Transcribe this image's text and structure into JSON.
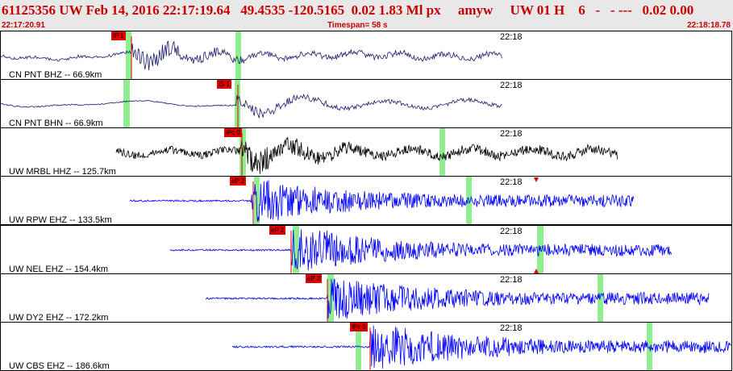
{
  "header": {
    "title": "61125356 UW Feb 14, 2016 22:17:19.64   49.4535 -120.5165  0.02 1.83 Ml px     amyw     UW 01 H    6   -   - ---   0.02 0.00",
    "start_time": "22:17:20.91",
    "timespan": "Timespan=  58 s",
    "end_time": "22:18:18.78"
  },
  "colors": {
    "title": "#c80000",
    "pick": "#e00000",
    "window": "#90ee90",
    "trace_dark": "#1a1a6e",
    "trace_black": "#000000",
    "trace_blue": "#0000ff"
  },
  "traces": [
    {
      "label": "CN PNT BHZ -- 66.9km",
      "time_label": "22:18",
      "pick": "iP 1",
      "color": "#1a1a6e"
    },
    {
      "label": "CN PNT BHN -- 66.9km",
      "time_label": "22:18",
      "pick": "iS 1",
      "color": "#1a1a6e"
    },
    {
      "label": "UW MRBL HHZ -- 125.7km",
      "time_label": "22:18",
      "pick": "iPc 0",
      "color": "#000000"
    },
    {
      "label": "UW RPW EHZ -- 133.5km",
      "time_label": "22:18",
      "pick": "eP 2",
      "color": "#0000ff"
    },
    {
      "label": "UW NEL EHZ -- 154.4km",
      "time_label": "22:18",
      "pick": "eP 2",
      "color": "#0000ff"
    },
    {
      "label": "UW DY2 EHZ -- 172.2km",
      "time_label": "22:18",
      "pick": "eP 2",
      "color": "#0000ff"
    },
    {
      "label": "UW CBS EHZ -- 186.6km",
      "time_label": "22:18",
      "pick": "iPc 0",
      "color": "#0000ff"
    }
  ]
}
